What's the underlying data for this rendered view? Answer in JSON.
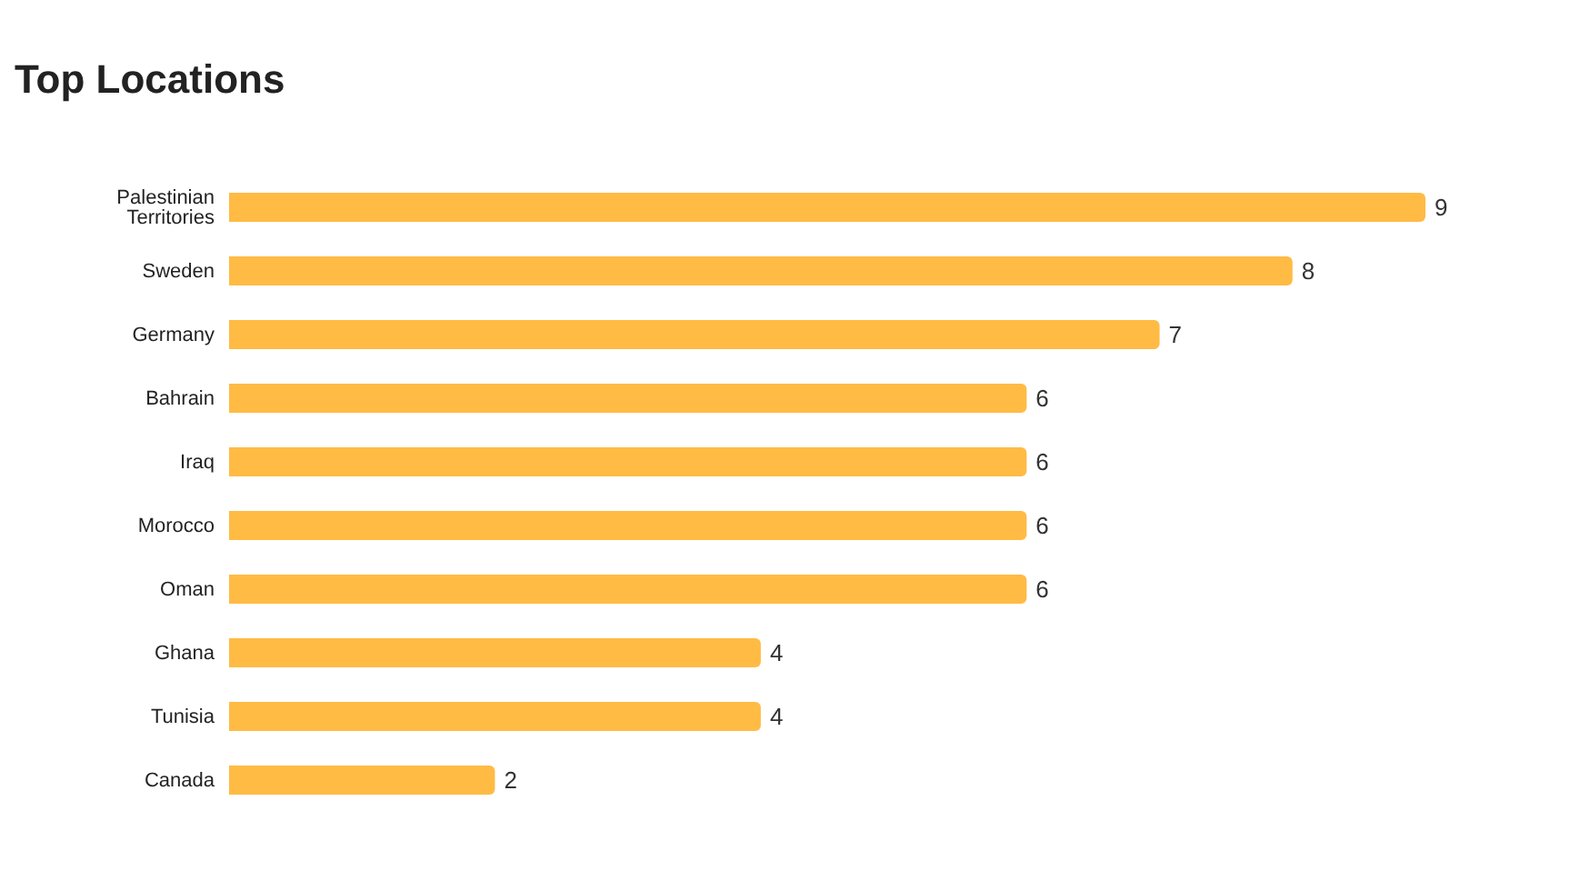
{
  "chart_data": {
    "type": "bar",
    "orientation": "horizontal",
    "title": "Top Locations",
    "categories": [
      "Palestinian Territories",
      "Sweden",
      "Germany",
      "Bahrain",
      "Iraq",
      "Morocco",
      "Oman",
      "Ghana",
      "Tunisia",
      "Canada"
    ],
    "values": [
      9,
      8,
      7,
      6,
      6,
      6,
      6,
      4,
      4,
      2
    ],
    "color": "#ffbb44",
    "data_labels": true,
    "grid": false,
    "legend": false
  }
}
